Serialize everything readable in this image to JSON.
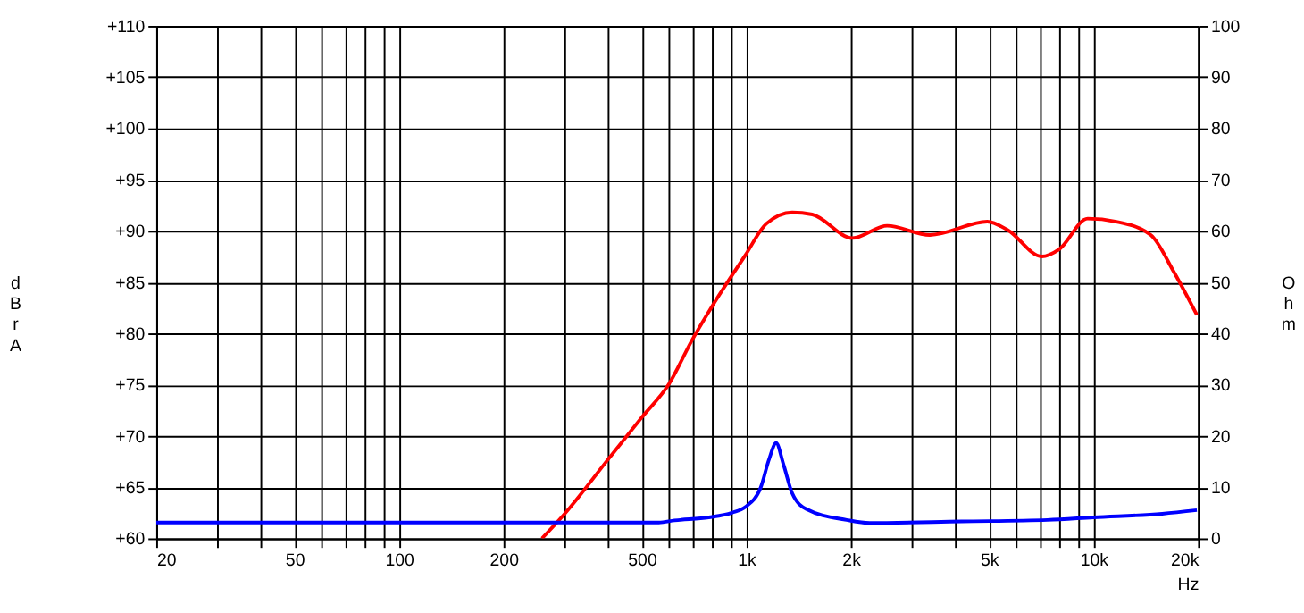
{
  "chart_data": {
    "type": "line",
    "xlabel": "Hz",
    "ylabel": "dBr A",
    "y2label": "Ohm",
    "log": "x",
    "grid": true,
    "marker": "none",
    "line_style": "solid",
    "xlim": [
      20,
      20000
    ],
    "xticks": [
      20,
      {
        "value": 30,
        "label": null
      },
      {
        "value": 40,
        "label": null
      },
      50,
      {
        "value": 60,
        "label": null
      },
      {
        "value": 70,
        "label": null
      },
      {
        "value": 80,
        "label": null
      },
      {
        "value": 90,
        "label": null
      },
      100,
      200,
      {
        "value": 300,
        "label": null
      },
      {
        "value": 400,
        "label": null
      },
      500,
      {
        "value": 600,
        "label": null
      },
      {
        "value": 700,
        "label": null
      },
      {
        "value": 800,
        "label": null
      },
      {
        "value": 900,
        "label": null
      },
      {
        "value": 1000,
        "label": "1k"
      },
      {
        "value": 2000,
        "label": "2k"
      },
      {
        "value": 3000,
        "label": null
      },
      {
        "value": 4000,
        "label": null
      },
      {
        "value": 5000,
        "label": "5k"
      },
      {
        "value": 6000,
        "label": null
      },
      {
        "value": 7000,
        "label": null
      },
      {
        "value": 8000,
        "label": null
      },
      {
        "value": 9000,
        "label": null
      },
      {
        "value": 10000,
        "label": "10k"
      },
      {
        "value": 20000,
        "label": "20k"
      }
    ],
    "ylim": [
      60,
      110
    ],
    "yticks": [
      {
        "value": 60,
        "label": "+60"
      },
      {
        "value": 65,
        "label": "+65"
      },
      {
        "value": 70,
        "label": "+70"
      },
      {
        "value": 75,
        "label": "+75"
      },
      {
        "value": 80,
        "label": "+80"
      },
      {
        "value": 85,
        "label": "+85"
      },
      {
        "value": 90,
        "label": "+90"
      },
      {
        "value": 95,
        "label": "+95"
      },
      {
        "value": 100,
        "label": "+100"
      },
      {
        "value": 105,
        "label": "+105"
      },
      {
        "value": 110,
        "label": "+110"
      }
    ],
    "y2lim": [
      0,
      100
    ],
    "y2ticks": [
      0,
      10,
      20,
      30,
      40,
      50,
      60,
      70,
      80,
      90,
      100
    ],
    "series": [
      {
        "color": "#ff0000",
        "x": [
          258,
          300,
          400,
          500,
          600,
          697,
          796,
          993,
          1142,
          1356,
          1549,
          2022,
          2543,
          3380,
          4944,
          5650,
          7094,
          7960,
          9620,
          11640,
          14620,
          17030,
          19840
        ],
        "values": [
          60,
          62.4,
          67.7,
          71.8,
          75.1,
          79.3,
          82.6,
          87.6,
          90.7,
          91.8,
          91.6,
          89.3,
          90.5,
          89.6,
          90.9,
          90.1,
          87.5,
          88.2,
          91.2,
          90.9,
          89.6,
          86.0,
          81.8
        ]
      },
      {
        "color": "#0000ff",
        "axis": "y2",
        "x": [
          20,
          560,
          621,
          780,
          909,
          993,
          1100,
          1164,
          1219,
          1280,
          1356,
          1490,
          1945,
          2266,
          4167,
          7370,
          10000,
          15770,
          19840
        ],
        "values": [
          3.1,
          3.1,
          3.5,
          4.1,
          5.0,
          6.1,
          9.9,
          15.5,
          18.6,
          14.4,
          8.8,
          5.7,
          3.6,
          3.0,
          3.3,
          3.6,
          4.1,
          4.8,
          5.5
        ]
      }
    ]
  }
}
